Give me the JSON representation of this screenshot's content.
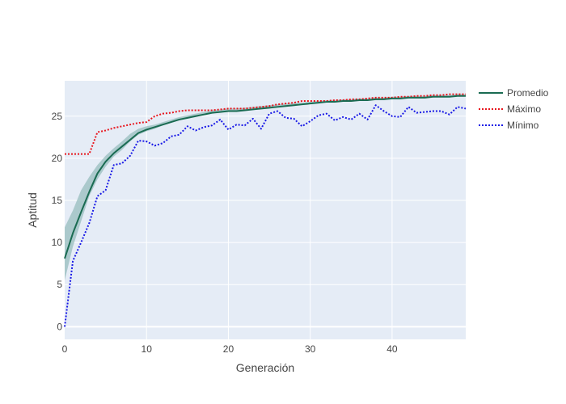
{
  "chart_data": {
    "type": "line",
    "xlabel": "Generación",
    "ylabel": "Aptitud",
    "xlim": [
      0,
      49
    ],
    "ylim": [
      -1.5,
      29.2
    ],
    "x_ticks": [
      0,
      10,
      20,
      30,
      40
    ],
    "y_ticks": [
      0,
      5,
      10,
      15,
      20,
      25
    ],
    "grid": true,
    "legend_position": "top-right",
    "background_color": "#e5ecf6",
    "band": {
      "x": [
        0,
        1,
        2,
        3,
        4,
        5,
        6,
        7,
        8,
        9,
        10,
        11,
        12,
        13,
        14,
        15,
        16,
        17,
        18,
        19,
        20,
        21,
        22,
        23,
        24,
        25,
        26,
        27,
        28,
        29,
        30,
        31,
        32,
        33,
        34,
        35,
        36,
        37,
        38,
        39,
        40,
        41,
        42,
        43,
        44,
        45,
        46,
        47,
        48,
        49
      ],
      "lower": [
        5.5,
        9.5,
        12.5,
        15.5,
        17.5,
        19.0,
        20.2,
        21.0,
        22.0,
        22.8,
        23.2,
        23.5,
        23.9,
        24.2,
        24.5,
        24.7,
        24.9,
        25.2,
        25.4,
        25.5,
        25.6,
        25.6,
        25.7,
        25.8,
        25.9,
        26.0,
        26.1,
        26.2,
        26.3,
        26.4,
        26.5,
        26.6,
        26.7,
        26.7,
        26.8,
        26.8,
        26.9,
        26.9,
        27.0,
        27.0,
        27.1,
        27.1,
        27.2,
        27.2,
        27.2,
        27.3,
        27.3,
        27.3,
        27.4,
        27.4
      ],
      "upper": [
        11.8,
        13.8,
        16.2,
        17.8,
        19.2,
        20.3,
        21.2,
        22.0,
        22.9,
        23.5,
        23.8,
        24.0,
        24.3,
        24.6,
        24.9,
        25.1,
        25.3,
        25.5,
        25.7,
        25.8,
        25.9,
        25.9,
        26.0,
        26.1,
        26.2,
        26.3,
        26.4,
        26.5,
        26.6,
        26.6,
        26.7,
        26.8,
        26.9,
        26.9,
        27.0,
        27.0,
        27.1,
        27.1,
        27.2,
        27.2,
        27.3,
        27.3,
        27.4,
        27.4,
        27.4,
        27.5,
        27.5,
        27.5,
        27.6,
        27.6
      ],
      "color": "#97bdbd"
    },
    "series": [
      {
        "name": "Promedio",
        "color": "#1a6b52",
        "dash": "solid",
        "values": [
          8.1,
          11.1,
          13.6,
          16.0,
          18.2,
          19.6,
          20.6,
          21.4,
          22.2,
          23.0,
          23.4,
          23.7,
          24.0,
          24.3,
          24.6,
          24.8,
          25.0,
          25.2,
          25.4,
          25.5,
          25.6,
          25.6,
          25.7,
          25.8,
          25.9,
          26.0,
          26.1,
          26.2,
          26.3,
          26.4,
          26.5,
          26.6,
          26.7,
          26.7,
          26.8,
          26.8,
          26.9,
          26.9,
          27.0,
          27.0,
          27.1,
          27.1,
          27.2,
          27.2,
          27.2,
          27.3,
          27.3,
          27.3,
          27.4,
          27.4
        ]
      },
      {
        "name": "Máximo",
        "color": "#e8161e",
        "dash": "dot",
        "values": [
          20.5,
          20.5,
          20.5,
          20.5,
          23.1,
          23.3,
          23.6,
          23.8,
          24.0,
          24.2,
          24.3,
          25.0,
          25.3,
          25.4,
          25.6,
          25.7,
          25.7,
          25.7,
          25.7,
          25.8,
          25.9,
          25.9,
          25.9,
          26.0,
          26.1,
          26.2,
          26.4,
          26.5,
          26.6,
          26.8,
          26.8,
          26.8,
          26.8,
          26.9,
          26.9,
          27.0,
          27.0,
          27.1,
          27.2,
          27.2,
          27.2,
          27.3,
          27.3,
          27.4,
          27.4,
          27.5,
          27.5,
          27.6,
          27.6,
          27.6
        ]
      },
      {
        "name": "Mínimo",
        "color": "#1919e6",
        "dash": "dot",
        "values": [
          0.0,
          7.8,
          10.0,
          12.3,
          15.5,
          16.2,
          19.2,
          19.4,
          20.3,
          22.1,
          22.0,
          21.5,
          21.8,
          22.6,
          22.8,
          23.8,
          23.3,
          23.7,
          23.9,
          24.6,
          23.4,
          24.0,
          23.9,
          24.7,
          23.5,
          25.3,
          25.6,
          24.8,
          24.7,
          23.8,
          24.4,
          25.1,
          25.3,
          24.5,
          24.9,
          24.6,
          25.3,
          24.6,
          26.3,
          25.6,
          25.0,
          24.9,
          26.1,
          25.4,
          25.5,
          25.6,
          25.6,
          25.2,
          26.1,
          25.9
        ]
      }
    ]
  }
}
